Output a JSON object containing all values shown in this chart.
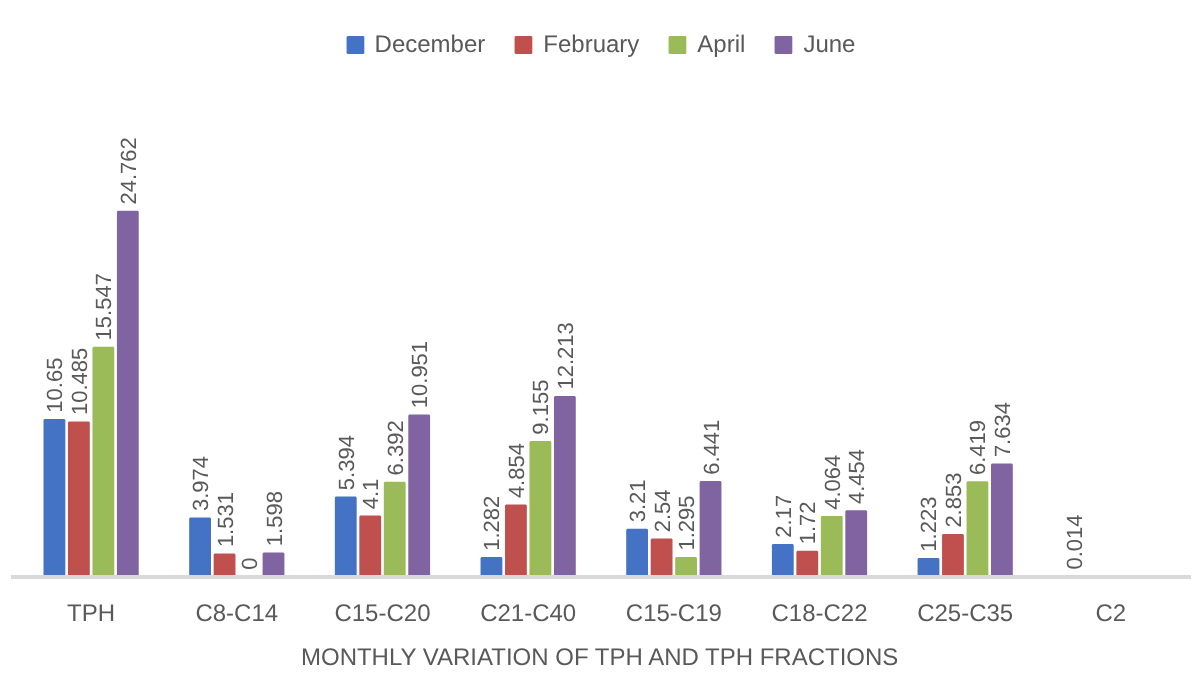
{
  "chart_data": {
    "type": "bar",
    "xlabel": "MONTHLY VARIATION OF TPH AND TPH FRACTIONS",
    "categories": [
      "TPH",
      "C8-C14",
      "C15-C20",
      "C21-C40",
      "C15-C19",
      "C18-C22",
      "C25-C35",
      "C2"
    ],
    "series": [
      {
        "name": "December",
        "color": "#4472c4",
        "values": [
          10.65,
          3.974,
          5.394,
          1.282,
          3.21,
          2.17,
          1.223,
          0.014
        ]
      },
      {
        "name": "February",
        "color": "#c0504d",
        "values": [
          10.485,
          1.531,
          4.1,
          4.854,
          2.54,
          1.72,
          2.853,
          null
        ]
      },
      {
        "name": "April",
        "color": "#9bbb59",
        "values": [
          15.547,
          0,
          6.392,
          9.155,
          1.295,
          4.064,
          6.419,
          null
        ]
      },
      {
        "name": "June",
        "color": "#8064a2",
        "values": [
          24.762,
          1.598,
          10.951,
          12.213,
          6.441,
          4.454,
          7.634,
          null
        ]
      }
    ],
    "data_labels": true,
    "legend": "top",
    "grid": false
  }
}
